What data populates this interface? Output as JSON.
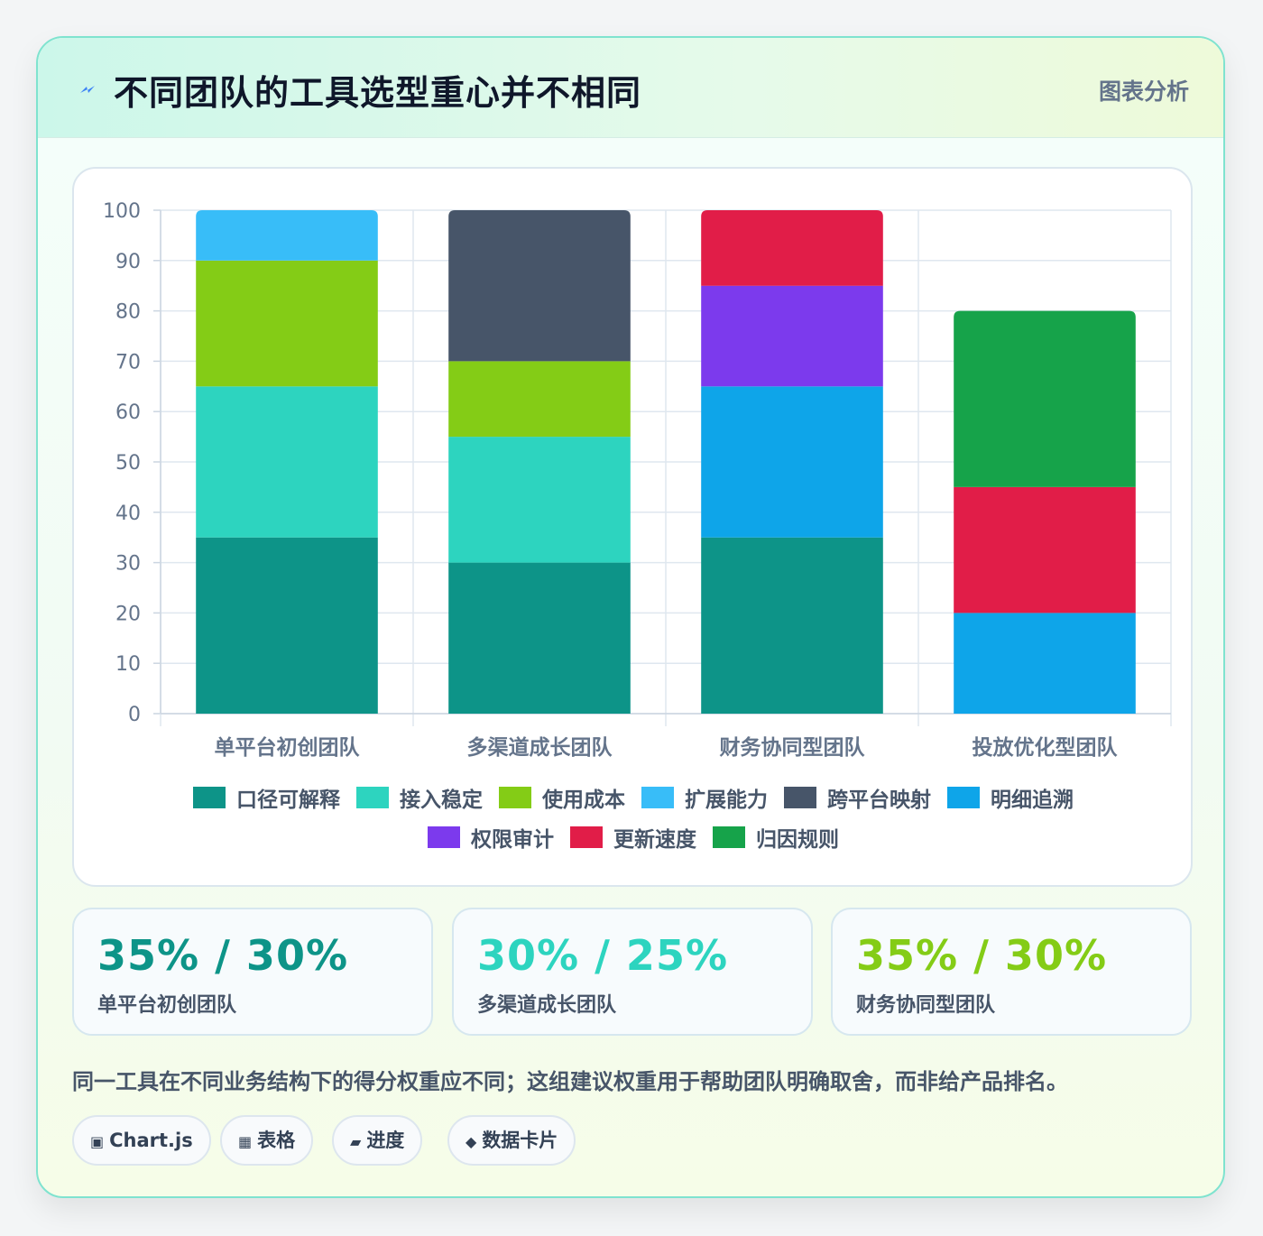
{
  "header": {
    "title": "不同团队的工具选型重心并不相同",
    "tag": "图表分析",
    "icon": "bolt-icon"
  },
  "chart_data": {
    "type": "bar",
    "stacked": true,
    "title": "",
    "xlabel": "",
    "ylabel": "",
    "ylim": [
      0,
      100
    ],
    "yticks": [
      0,
      10,
      20,
      30,
      40,
      50,
      60,
      70,
      80,
      90,
      100
    ],
    "grid": true,
    "legend_position": "bottom",
    "categories": [
      "单平台初创团队",
      "多渠道成长团队",
      "财务协同型团队",
      "投放优化型团队"
    ],
    "series": [
      {
        "name": "口径可解释",
        "color": "#0d9488",
        "values": [
          35,
          30,
          35,
          0
        ]
      },
      {
        "name": "接入稳定",
        "color": "#2dd4bf",
        "values": [
          30,
          25,
          0,
          0
        ]
      },
      {
        "name": "使用成本",
        "color": "#84cc16",
        "values": [
          25,
          15,
          0,
          0
        ]
      },
      {
        "name": "扩展能力",
        "color": "#38bdf8",
        "values": [
          10,
          0,
          0,
          0
        ]
      },
      {
        "name": "跨平台映射",
        "color": "#475569",
        "values": [
          0,
          30,
          0,
          0
        ]
      },
      {
        "name": "明细追溯",
        "color": "#0ea5e9",
        "values": [
          0,
          0,
          30,
          20
        ]
      },
      {
        "name": "权限审计",
        "color": "#7c3aed",
        "values": [
          0,
          0,
          20,
          0
        ]
      },
      {
        "name": "更新速度",
        "color": "#e11d48",
        "values": [
          0,
          0,
          15,
          25
        ]
      },
      {
        "name": "归因规则",
        "color": "#16a34a",
        "values": [
          0,
          0,
          0,
          35
        ]
      }
    ]
  },
  "stats": [
    {
      "value": "35% / 30%",
      "label": "单平台初创团队",
      "color": "#0d9488"
    },
    {
      "value": "30% / 25%",
      "label": "多渠道成长团队",
      "color": "#2dd4bf"
    },
    {
      "value": "35% / 30%",
      "label": "财务协同型团队",
      "color": "#84cc16"
    }
  ],
  "note": "同一工具在不同业务结构下的得分权重应不同；这组建议权重用于帮助团队明确取舍，而非给产品排名。",
  "pills": [
    {
      "icon": "▣",
      "label": "Chart.js"
    },
    {
      "icon": "▦",
      "label": "表格"
    },
    {
      "icon": "▰",
      "label": "进度"
    },
    {
      "icon": "◆",
      "label": "数据卡片"
    }
  ]
}
